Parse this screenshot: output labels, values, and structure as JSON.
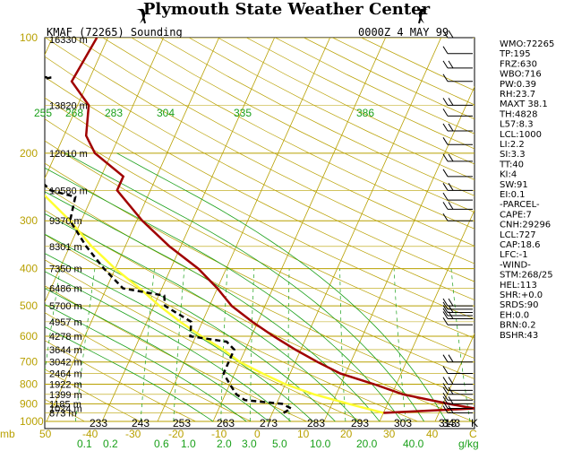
{
  "header": {
    "title": "Plymouth State Weather Center",
    "station": "KMAF (72265)  Sounding",
    "time": "0000Z  4 MAY  99"
  },
  "colors": {
    "isotherm": "#b8a000",
    "isobar": "#b8a000",
    "dry_adiabat": "#b8a000",
    "moist_adiabat": "#1aa01a",
    "mixing_ratio": "#1aa01a",
    "temperature": "#a00000",
    "dewpoint": "#000000",
    "parcel": "#ffff33",
    "axis_label": "#b8a000",
    "theta_label": "#1aa01a"
  },
  "icons": {
    "logo_left": "flag-icon",
    "logo_right": "flag-icon"
  },
  "indices": [
    "WMO:72265",
    "TP:195",
    "FRZ:630",
    "WBO:716",
    "PW:0.39",
    "RH:23.7",
    "MAXT 38.1",
    "TH:4828",
    "L57:8.3",
    "LCL:1000",
    "LI:2.2",
    "SI:3.3",
    "TT:40",
    "KI:4",
    "SW:91",
    "EI:0.1",
    "-PARCEL-",
    "CAPE:7",
    "CNH:29296",
    "LCL:727",
    "CAP:18.6",
    "LFC:-1",
    "-WIND-",
    "STM:268/25",
    "HEL:113",
    "SHR:+0.0",
    "SRDS:90",
    "EH:0.0",
    "BRN:0.2",
    "BSHR:43"
  ],
  "chart_data": {
    "type": "skew-t",
    "pressure_axis": {
      "unit": "mb",
      "range": [
        1000,
        100
      ],
      "ticks": [
        100,
        200,
        300,
        400,
        500,
        600,
        700,
        800,
        900,
        1000
      ]
    },
    "temperature_axis": {
      "unit": "C",
      "ticks": [
        -50,
        -40,
        -30,
        -20,
        -10,
        0,
        10,
        20,
        30,
        40
      ],
      "tick_labels": [
        "50",
        "-40",
        "-30",
        "-20",
        "-10",
        "0",
        "10",
        "20",
        "30",
        "40",
        "C"
      ]
    },
    "mixing_ratio_labels": [
      "0.1",
      "0.2",
      "0.6",
      "1.0",
      "2.0",
      "3.0",
      "5.0",
      "10.0",
      "20.0",
      "40.0",
      "g/kg"
    ],
    "theta_bottom_labels": [
      "233",
      "243",
      "253",
      "263",
      "273",
      "283",
      "293",
      "303",
      "313",
      "343",
      "K"
    ],
    "theta_mid_labels": [
      "255",
      "268",
      "283",
      "304",
      "335",
      "386"
    ],
    "heights": [
      {
        "p": 100,
        "label": "16330 m"
      },
      {
        "p": 150,
        "label": "13820 m"
      },
      {
        "p": 200,
        "label": "12010 m"
      },
      {
        "p": 250,
        "label": "10580 m"
      },
      {
        "p": 300,
        "label": "9370 m"
      },
      {
        "p": 350,
        "label": "8301 m"
      },
      {
        "p": 400,
        "label": "7350 m"
      },
      {
        "p": 450,
        "label": "6486 m"
      },
      {
        "p": 500,
        "label": "5700 m"
      },
      {
        "p": 550,
        "label": "4957 m"
      },
      {
        "p": 600,
        "label": "4278 m"
      },
      {
        "p": 650,
        "label": "3644 m"
      },
      {
        "p": 700,
        "label": "3042 m"
      },
      {
        "p": 750,
        "label": "2464 m"
      },
      {
        "p": 800,
        "label": "1922 m"
      },
      {
        "p": 850,
        "label": "1399 m"
      },
      {
        "p": 900,
        "label": "1185 m"
      },
      {
        "p": 925,
        "label": "1024 m"
      },
      {
        "p": 950,
        "label": "873 m"
      }
    ],
    "temperature": [
      {
        "p": 950,
        "t": 20
      },
      {
        "p": 925,
        "t": 36
      },
      {
        "p": 900,
        "t": 31
      },
      {
        "p": 850,
        "t": 22
      },
      {
        "p": 800,
        "t": 16
      },
      {
        "p": 750,
        "t": 9
      },
      {
        "p": 700,
        "t": 4
      },
      {
        "p": 650,
        "t": -1
      },
      {
        "p": 600,
        "t": -6
      },
      {
        "p": 550,
        "t": -11
      },
      {
        "p": 500,
        "t": -16
      },
      {
        "p": 450,
        "t": -20
      },
      {
        "p": 400,
        "t": -25
      },
      {
        "p": 350,
        "t": -32
      },
      {
        "p": 300,
        "t": -39
      },
      {
        "p": 250,
        "t": -46
      },
      {
        "p": 230,
        "t": -46
      },
      {
        "p": 200,
        "t": -53
      },
      {
        "p": 180,
        "t": -56
      },
      {
        "p": 150,
        "t": -58
      },
      {
        "p": 130,
        "t": -63
      },
      {
        "p": 100,
        "t": -62
      }
    ],
    "dewpoint": [
      {
        "p": 950,
        "t": 2
      },
      {
        "p": 925,
        "t": 3
      },
      {
        "p": 900,
        "t": 1
      },
      {
        "p": 880,
        "t": -6
      },
      {
        "p": 850,
        "t": -8
      },
      {
        "p": 800,
        "t": -10
      },
      {
        "p": 750,
        "t": -12
      },
      {
        "p": 700,
        "t": -12
      },
      {
        "p": 650,
        "t": -12
      },
      {
        "p": 620,
        "t": -14
      },
      {
        "p": 600,
        "t": -21
      },
      {
        "p": 550,
        "t": -22
      },
      {
        "p": 500,
        "t": -28
      },
      {
        "p": 470,
        "t": -29
      },
      {
        "p": 450,
        "t": -37
      },
      {
        "p": 400,
        "t": -42
      },
      {
        "p": 350,
        "t": -47
      },
      {
        "p": 300,
        "t": -52
      },
      {
        "p": 260,
        "t": -53
      },
      {
        "p": 250,
        "t": -58
      },
      {
        "p": 200,
        "t": -68
      },
      {
        "p": 170,
        "t": -70
      },
      {
        "p": 150,
        "t": -72
      },
      {
        "p": 135,
        "t": -71
      },
      {
        "p": 130,
        "t": -70
      },
      {
        "p": 127,
        "t": -67
      },
      {
        "p": 125,
        "t": -78
      },
      {
        "p": 115,
        "t": -77
      },
      {
        "p": 100,
        "t": -78
      }
    ],
    "parcel": [
      {
        "p": 950,
        "t": 20
      },
      {
        "p": 900,
        "t": 13
      },
      {
        "p": 850,
        "t": 6
      },
      {
        "p": 800,
        "t": 0
      },
      {
        "p": 750,
        "t": -5
      },
      {
        "p": 700,
        "t": -10
      },
      {
        "p": 650,
        "t": -14
      },
      {
        "p": 600,
        "t": -19
      },
      {
        "p": 550,
        "t": -24
      },
      {
        "p": 500,
        "t": -29
      },
      {
        "p": 450,
        "t": -34
      },
      {
        "p": 400,
        "t": -40
      },
      {
        "p": 350,
        "t": -46
      },
      {
        "p": 300,
        "t": -52
      },
      {
        "p": 250,
        "t": -60
      },
      {
        "p": 200,
        "t": -68
      },
      {
        "p": 150,
        "t": -76
      },
      {
        "p": 100,
        "t": -86
      }
    ],
    "wind_levels": [
      100,
      110,
      120,
      130,
      150,
      160,
      175,
      190,
      210,
      230,
      250,
      265,
      280,
      300,
      500,
      510,
      520,
      530,
      540,
      560,
      700,
      750,
      800,
      830,
      850,
      880,
      900,
      925,
      950
    ]
  }
}
